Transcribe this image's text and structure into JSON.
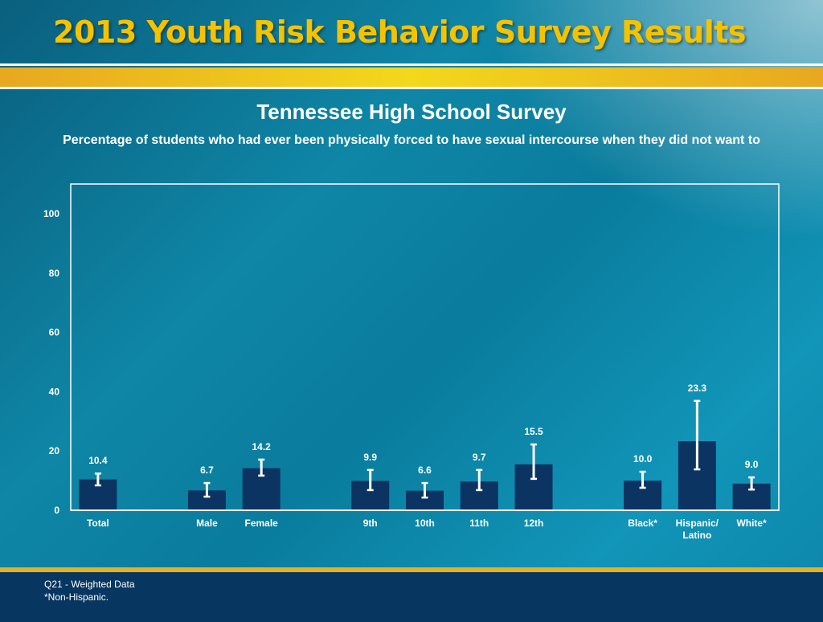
{
  "header": {
    "title": "2013 Youth Risk Behavior Survey Results"
  },
  "chart_data": {
    "type": "bar",
    "title": "Tennessee High School Survey",
    "subtitle": "Percentage of students who had ever been physically forced to have sexual intercourse when they did not want to",
    "categories": [
      "Total",
      "Male",
      "Female",
      "9th",
      "10th",
      "11th",
      "12th",
      "Black*",
      "Hispanic/ Latino",
      "White*"
    ],
    "groups": [
      [
        0
      ],
      [
        1,
        2
      ],
      [
        3,
        4,
        5,
        6
      ],
      [
        7,
        8,
        9
      ]
    ],
    "values": [
      10.4,
      6.7,
      14.2,
      9.9,
      6.6,
      9.7,
      15.5,
      10.0,
      23.3,
      9.0
    ],
    "value_labels": [
      "10.4",
      "6.7",
      "14.2",
      "9.9",
      "6.6",
      "9.7",
      "15.5",
      "10.0",
      "23.3",
      "9.0"
    ],
    "ci_lower": [
      8.4,
      4.6,
      11.7,
      6.8,
      4.3,
      6.8,
      10.6,
      7.6,
      13.8,
      7.0
    ],
    "ci_upper": [
      12.4,
      9.2,
      17.1,
      13.6,
      9.2,
      13.6,
      22.2,
      13.0,
      36.9,
      11.1
    ],
    "yticks": [
      0,
      20,
      40,
      60,
      80,
      100
    ],
    "ylim": [
      0,
      110
    ],
    "grid": false,
    "bar_color": "#0b3462"
  },
  "footer": {
    "note1": "Q21 - Weighted Data",
    "note2": "*Non-Hispanic."
  }
}
